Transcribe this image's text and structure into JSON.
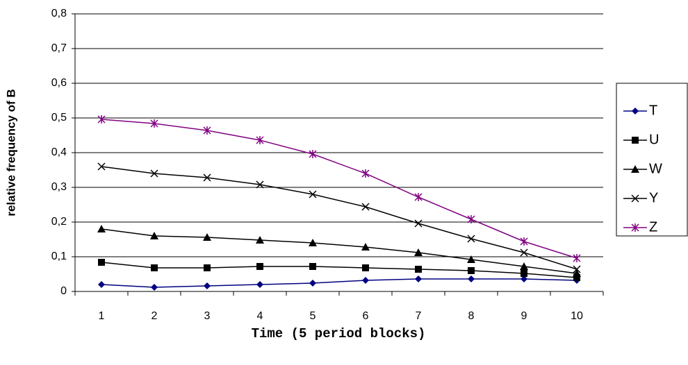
{
  "chart_data": {
    "type": "line",
    "x_label": "Time (5 period blocks)",
    "y_label": "relative frequency of B",
    "categories": [
      "1",
      "2",
      "3",
      "4",
      "5",
      "6",
      "7",
      "8",
      "9",
      "10"
    ],
    "series": [
      {
        "name": "T",
        "color": "#000080",
        "marker": "diamond",
        "values": [
          0.02,
          0.012,
          0.016,
          0.02,
          0.024,
          0.032,
          0.036,
          0.036,
          0.036,
          0.032
        ]
      },
      {
        "name": "U",
        "color": "#000000",
        "marker": "square",
        "values": [
          0.084,
          0.068,
          0.068,
          0.072,
          0.072,
          0.068,
          0.064,
          0.06,
          0.052,
          0.04
        ]
      },
      {
        "name": "W",
        "color": "#000000",
        "marker": "triangle",
        "values": [
          0.18,
          0.16,
          0.156,
          0.148,
          0.14,
          0.128,
          0.112,
          0.092,
          0.072,
          0.052
        ]
      },
      {
        "name": "Y",
        "color": "#000000",
        "marker": "x",
        "values": [
          0.36,
          0.34,
          0.328,
          0.308,
          0.28,
          0.244,
          0.196,
          0.152,
          0.112,
          0.064
        ]
      },
      {
        "name": "Z",
        "color": "#800080",
        "marker": "star",
        "values": [
          0.496,
          0.484,
          0.464,
          0.436,
          0.396,
          0.34,
          0.272,
          0.208,
          0.144,
          0.096
        ]
      }
    ],
    "ylim": [
      0,
      0.8
    ],
    "yticks": [
      0,
      {
        "value": 0.1,
        "label": "0,1"
      },
      {
        "value": 0.2,
        "label": "0,2"
      },
      {
        "value": 0.3,
        "label": "0,3"
      },
      {
        "value": 0.4,
        "label": "0,4"
      },
      {
        "value": 0.5,
        "label": "0,5"
      },
      {
        "value": 0.6,
        "label": "0,6"
      },
      {
        "value": 0.7,
        "label": "0,7"
      },
      {
        "value": 0.8,
        "label": "0,8"
      }
    ],
    "grid": true,
    "legend": "right"
  }
}
